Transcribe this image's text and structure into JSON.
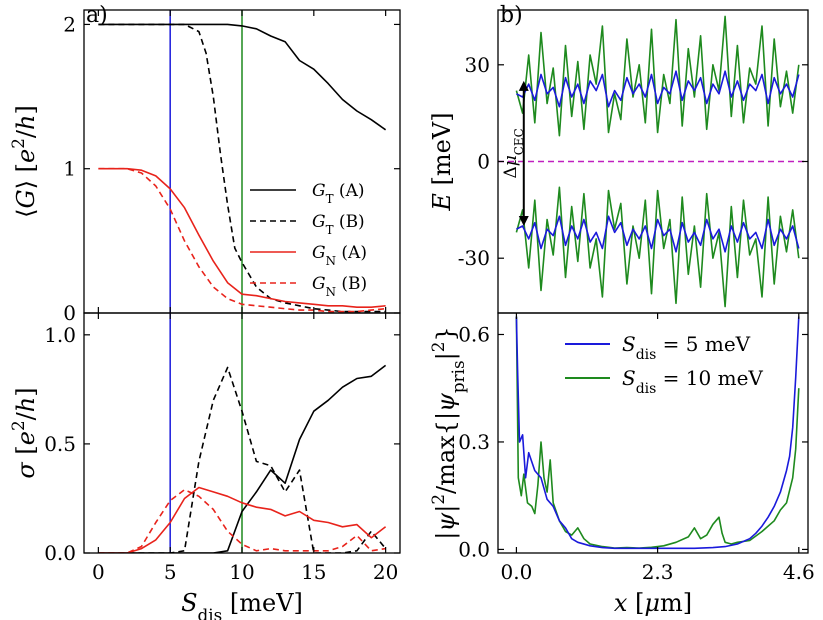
{
  "panel_labels": {
    "a": "a)",
    "b": "b)"
  },
  "colors": {
    "black": "#000000",
    "red": "#e8231b",
    "blue": "#1a1adb",
    "green": "#1e8a1e",
    "magenta": "#c01fc0"
  },
  "chart_data": [
    {
      "id": "a_top",
      "type": "line",
      "ylabel": "⟨G⟩ [e²/h]",
      "xlim": [
        -1,
        21
      ],
      "ylim": [
        0,
        2.1
      ],
      "xticks": [
        0,
        5,
        10,
        15,
        20
      ],
      "yticks": [
        0,
        1,
        2
      ],
      "ytick_labels": [
        "0",
        "1",
        "2"
      ],
      "vlines": [
        {
          "x": 5,
          "color": "blue"
        },
        {
          "x": 10,
          "color": "green"
        }
      ],
      "legend": [
        {
          "label": "G_T (A)",
          "color": "black",
          "dash": false
        },
        {
          "label": "G_T (B)",
          "color": "black",
          "dash": true
        },
        {
          "label": "G_N (A)",
          "color": "red",
          "dash": false
        },
        {
          "label": "G_N (B)",
          "color": "red",
          "dash": true
        }
      ],
      "series": [
        {
          "name": "G_T (A)",
          "color": "black",
          "dash": false,
          "x": [
            0,
            1,
            2,
            3,
            4,
            5,
            6,
            7,
            8,
            9,
            10,
            11,
            12,
            13,
            14,
            15,
            16,
            17,
            18,
            19,
            20
          ],
          "y": [
            2,
            2,
            2,
            2,
            2,
            2,
            2,
            2,
            2,
            2,
            1.99,
            1.97,
            1.92,
            1.88,
            1.75,
            1.69,
            1.59,
            1.48,
            1.4,
            1.34,
            1.27
          ]
        },
        {
          "name": "G_T (B)",
          "color": "black",
          "dash": true,
          "x": [
            0,
            1,
            2,
            3,
            4,
            5,
            6,
            7,
            7.5,
            8,
            8.5,
            9,
            9.5,
            10,
            11,
            12,
            13,
            14,
            15,
            16,
            17,
            18,
            19,
            20
          ],
          "y": [
            2,
            2,
            2,
            2,
            2,
            2,
            2,
            1.95,
            1.8,
            1.5,
            1.1,
            0.75,
            0.45,
            0.35,
            0.18,
            0.1,
            0.07,
            0.05,
            0.03,
            0.02,
            0.01,
            0.01,
            0.01,
            0.01
          ]
        },
        {
          "name": "G_N (A)",
          "color": "red",
          "dash": false,
          "x": [
            0,
            1,
            2,
            3,
            4,
            5,
            6,
            7,
            8,
            9,
            10,
            11,
            12,
            13,
            14,
            15,
            16,
            17,
            18,
            19,
            20
          ],
          "y": [
            1,
            1,
            1,
            0.99,
            0.95,
            0.86,
            0.73,
            0.54,
            0.36,
            0.21,
            0.13,
            0.12,
            0.1,
            0.08,
            0.07,
            0.06,
            0.05,
            0.05,
            0.04,
            0.04,
            0.05
          ]
        },
        {
          "name": "G_N (B)",
          "color": "red",
          "dash": true,
          "x": [
            0,
            1,
            2,
            3,
            4,
            5,
            6,
            7,
            8,
            9,
            10,
            11,
            12,
            13,
            14,
            15,
            16,
            17,
            18,
            19,
            20
          ],
          "y": [
            1,
            1,
            1,
            0.97,
            0.88,
            0.72,
            0.5,
            0.32,
            0.18,
            0.1,
            0.06,
            0.05,
            0.04,
            0.03,
            0.02,
            0.02,
            0.01,
            0.01,
            0.01,
            0.02,
            0.03
          ]
        }
      ]
    },
    {
      "id": "a_bottom",
      "type": "line",
      "xlabel": "S_dis [meV]",
      "ylabel": "σ [e²/h]",
      "xlim": [
        -1,
        21
      ],
      "ylim": [
        0,
        1.1
      ],
      "xticks": [
        0,
        5,
        10,
        15,
        20
      ],
      "xtick_labels": [
        "0",
        "5",
        "10",
        "15",
        "20"
      ],
      "yticks": [
        0,
        0.5,
        1.0
      ],
      "ytick_labels": [
        "0.0",
        "0.5",
        "1.0"
      ],
      "vlines": [
        {
          "x": 5,
          "color": "blue"
        },
        {
          "x": 10,
          "color": "green"
        }
      ],
      "series": [
        {
          "name": "G_T (A)",
          "color": "black",
          "dash": false,
          "x": [
            0,
            1,
            2,
            3,
            4,
            5,
            6,
            7,
            8,
            9,
            10,
            11,
            12,
            13,
            14,
            15,
            16,
            17,
            18,
            19,
            20
          ],
          "y": [
            0,
            0,
            0,
            0,
            0,
            0,
            0,
            0,
            0,
            0.01,
            0.19,
            0.28,
            0.38,
            0.32,
            0.52,
            0.65,
            0.7,
            0.76,
            0.8,
            0.81,
            0.86
          ]
        },
        {
          "name": "G_T (B)",
          "color": "black",
          "dash": true,
          "x": [
            0,
            1,
            2,
            3,
            4,
            5,
            6,
            7,
            8,
            9,
            10,
            11,
            12,
            13,
            14,
            15,
            16,
            17,
            18,
            19,
            20
          ],
          "y": [
            0,
            0,
            0,
            0,
            0,
            0,
            0.01,
            0.42,
            0.7,
            0.85,
            0.65,
            0.42,
            0.4,
            0.28,
            0.38,
            0,
            0,
            0,
            0.01,
            0.1,
            0.02
          ]
        },
        {
          "name": "G_N (A)",
          "color": "red",
          "dash": false,
          "x": [
            0,
            1,
            2,
            3,
            4,
            5,
            6,
            7,
            8,
            9,
            10,
            11,
            12,
            13,
            14,
            15,
            16,
            17,
            18,
            19,
            20
          ],
          "y": [
            0,
            0,
            0,
            0.02,
            0.06,
            0.14,
            0.25,
            0.3,
            0.28,
            0.26,
            0.23,
            0.21,
            0.2,
            0.17,
            0.19,
            0.15,
            0.14,
            0.12,
            0.13,
            0.07,
            0.12
          ]
        },
        {
          "name": "G_N (B)",
          "color": "red",
          "dash": true,
          "x": [
            0,
            1,
            2,
            3,
            4,
            5,
            6,
            7,
            8,
            9,
            10,
            11,
            12,
            13,
            14,
            15,
            16,
            17,
            18,
            19,
            20
          ],
          "y": [
            0,
            0,
            0,
            0.03,
            0.14,
            0.24,
            0.29,
            0.26,
            0.2,
            0.1,
            0.04,
            0.01,
            0.02,
            0.01,
            0.01,
            0.01,
            0.01,
            0.03,
            0.08,
            0.01,
            0.02
          ]
        }
      ]
    },
    {
      "id": "b_top",
      "type": "line",
      "ylabel": "E [meV]",
      "xlim": [
        -0.3,
        4.75
      ],
      "ylim": [
        -47,
        47
      ],
      "yticks": [
        -30,
        0,
        30
      ],
      "ytick_labels": [
        "-30",
        "0",
        "30"
      ],
      "hline": {
        "y": 0,
        "color": "magenta",
        "dash": true
      },
      "annotation": {
        "label": "Δμ_CEC",
        "x": 0.12,
        "y1": 25,
        "y2": -20
      },
      "series": [
        {
          "name": "S_dis = 5 meV",
          "color": "blue",
          "x": [
            0,
            0.1,
            0.2,
            0.3,
            0.4,
            0.5,
            0.6,
            0.7,
            0.8,
            0.9,
            1,
            1.1,
            1.2,
            1.3,
            1.4,
            1.5,
            1.6,
            1.7,
            1.8,
            1.9,
            2,
            2.1,
            2.2,
            2.3,
            2.4,
            2.5,
            2.6,
            2.7,
            2.8,
            2.9,
            3,
            3.1,
            3.2,
            3.3,
            3.4,
            3.5,
            3.6,
            3.7,
            3.8,
            3.9,
            4,
            4.1,
            4.2,
            4.3,
            4.4,
            4.5,
            4.6
          ],
          "y": [
            21,
            20,
            24,
            19,
            27,
            21,
            23,
            17,
            26,
            20,
            24,
            18,
            25,
            22,
            27,
            17,
            22,
            19,
            26,
            21,
            24,
            20,
            27,
            18,
            23,
            21,
            28,
            19,
            25,
            22,
            26,
            18,
            24,
            21,
            28,
            20,
            25,
            19,
            24,
            22,
            27,
            18,
            26,
            21,
            24,
            20,
            27
          ]
        },
        {
          "name": "S_dis = 10 meV",
          "color": "green",
          "x": [
            0,
            0.1,
            0.2,
            0.3,
            0.4,
            0.5,
            0.6,
            0.7,
            0.8,
            0.9,
            1,
            1.1,
            1.2,
            1.3,
            1.4,
            1.5,
            1.6,
            1.7,
            1.8,
            1.9,
            2,
            2.1,
            2.2,
            2.3,
            2.4,
            2.5,
            2.6,
            2.7,
            2.8,
            2.9,
            3,
            3.1,
            3.2,
            3.3,
            3.4,
            3.5,
            3.6,
            3.7,
            3.8,
            3.9,
            4,
            4.1,
            4.2,
            4.3,
            4.4,
            4.5,
            4.6
          ],
          "y": [
            22,
            15,
            33,
            12,
            40,
            18,
            29,
            8,
            36,
            14,
            31,
            10,
            33,
            24,
            42,
            9,
            21,
            13,
            38,
            20,
            30,
            12,
            41,
            9,
            27,
            18,
            44,
            11,
            35,
            20,
            39,
            10,
            30,
            22,
            45,
            14,
            36,
            12,
            29,
            24,
            42,
            11,
            38,
            17,
            28,
            15,
            30
          ]
        }
      ]
    },
    {
      "id": "b_bottom",
      "type": "line",
      "xlabel": "x [μm]",
      "ylabel": "|ψ|²/max{|ψ_pris|²}",
      "xlim": [
        -0.3,
        4.75
      ],
      "ylim": [
        -0.01,
        0.66
      ],
      "xticks": [
        0.0,
        2.3,
        4.6
      ],
      "xtick_labels": [
        "0.0",
        "2.3",
        "4.6"
      ],
      "yticks": [
        0.0,
        0.3,
        0.6
      ],
      "ytick_labels": [
        "0.0",
        "0.3",
        "0.6"
      ],
      "legend": [
        {
          "label": "S_dis = 5 meV",
          "color": "blue"
        },
        {
          "label": "S_dis = 10 meV",
          "color": "green"
        }
      ],
      "series": [
        {
          "name": "S_dis = 5 meV",
          "color": "blue",
          "x": [
            0,
            0.02,
            0.05,
            0.1,
            0.15,
            0.2,
            0.3,
            0.4,
            0.5,
            0.6,
            0.7,
            0.8,
            0.9,
            1.0,
            1.2,
            1.4,
            1.6,
            1.8,
            2.0,
            2.3,
            2.6,
            2.9,
            3.2,
            3.4,
            3.6,
            3.8,
            3.9,
            4.0,
            4.1,
            4.2,
            4.3,
            4.4,
            4.45,
            4.5,
            4.55,
            4.6
          ],
          "y": [
            0.65,
            0.5,
            0.3,
            0.32,
            0.2,
            0.27,
            0.22,
            0.2,
            0.14,
            0.12,
            0.08,
            0.06,
            0.03,
            0.02,
            0.01,
            0.005,
            0.003,
            0.003,
            0.003,
            0.003,
            0.003,
            0.003,
            0.005,
            0.008,
            0.015,
            0.03,
            0.045,
            0.065,
            0.09,
            0.12,
            0.16,
            0.22,
            0.26,
            0.34,
            0.48,
            0.65
          ]
        },
        {
          "name": "S_dis = 10 meV",
          "color": "green",
          "x": [
            0,
            0.03,
            0.08,
            0.12,
            0.18,
            0.25,
            0.3,
            0.35,
            0.4,
            0.45,
            0.5,
            0.55,
            0.6,
            0.7,
            0.8,
            0.9,
            1.0,
            1.1,
            1.2,
            1.4,
            1.6,
            1.8,
            2.0,
            2.2,
            2.4,
            2.6,
            2.8,
            2.9,
            3.0,
            3.1,
            3.2,
            3.3,
            3.35,
            3.4,
            3.5,
            3.6,
            3.8,
            4.0,
            4.2,
            4.3,
            4.4,
            4.5,
            4.55,
            4.6
          ],
          "y": [
            0.65,
            0.2,
            0.15,
            0.21,
            0.13,
            0.12,
            0.1,
            0.18,
            0.3,
            0.2,
            0.16,
            0.25,
            0.13,
            0.08,
            0.05,
            0.04,
            0.06,
            0.03,
            0.015,
            0.008,
            0.004,
            0.005,
            0.004,
            0.006,
            0.01,
            0.02,
            0.035,
            0.06,
            0.03,
            0.04,
            0.07,
            0.09,
            0.045,
            0.02,
            0.015,
            0.02,
            0.025,
            0.05,
            0.08,
            0.11,
            0.13,
            0.2,
            0.28,
            0.45
          ]
        }
      ]
    }
  ]
}
